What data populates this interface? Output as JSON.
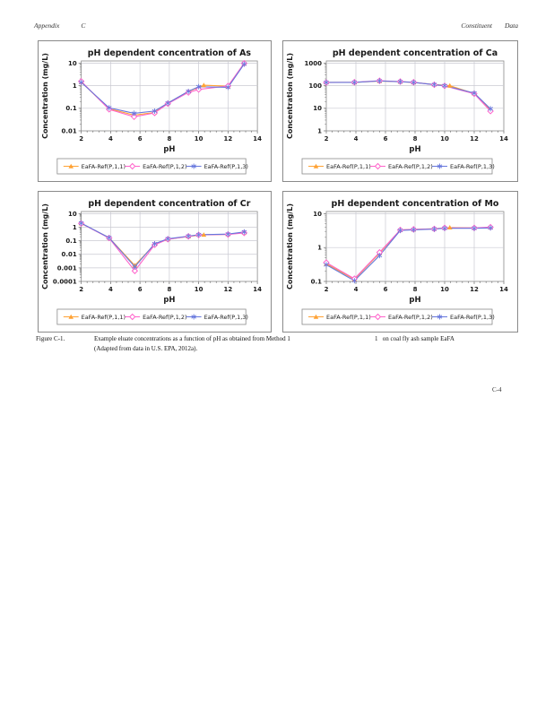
{
  "header": {
    "left": [
      "Appendix",
      "C"
    ],
    "right": [
      "Constituent",
      "Data"
    ]
  },
  "caption": {
    "label": "Figure C-1.",
    "main": "Example eluate concentrations as a function of pH as obtained from Method 1",
    "right_fragment": "1   on coal fly ash sample EaFA",
    "line2": "(Adapted from data in U.S. EPA, 2012a)."
  },
  "page_number": "C-4",
  "colors": {
    "series1": "#FFA234",
    "series2": "#FF63CB",
    "series3": "#6677DD",
    "grid": "#CACAD2",
    "axis": "#6e6e6e",
    "box_border": "#8a8a8a",
    "text": "#1a1a1a"
  },
  "legend_labels": [
    "EaFA-Ref(P,1,1)",
    "EaFA-Ref(P,1,2)",
    "EaFA-Ref(P,1,3)"
  ],
  "chart_data": [
    {
      "id": "as",
      "type": "line",
      "title": "pH dependent concentration of As",
      "xlabel": "pH",
      "ylabel": "Concentration (mg/L)",
      "x_ticks": [
        2,
        4,
        6,
        8,
        10,
        12,
        14
      ],
      "xlim": [
        2,
        14
      ],
      "y_scale": "log",
      "ylim": [
        0.01,
        10
      ],
      "y_tick_labels": [
        "0.01",
        "0.1",
        "1",
        "10"
      ],
      "grid": true,
      "legend_position": "bottom",
      "series": [
        {
          "name": "EaFA-Ref(P,1,1)",
          "marker": "triangle",
          "color_key": "series1",
          "x": [
            2,
            3.9,
            5.6,
            7,
            7.9,
            9.3,
            10.35,
            12,
            13.1
          ],
          "y": [
            1.45,
            0.095,
            0.05,
            0.065,
            0.17,
            0.55,
            1.05,
            0.95,
            9.5
          ]
        },
        {
          "name": "EaFA-Ref(P,1,2)",
          "marker": "diamond",
          "color_key": "series2",
          "x": [
            2,
            3.9,
            5.6,
            7,
            7.9,
            9.3,
            10,
            12,
            13.1
          ],
          "y": [
            1.55,
            0.09,
            0.042,
            0.062,
            0.16,
            0.5,
            0.68,
            0.97,
            9.8
          ]
        },
        {
          "name": "EaFA-Ref(P,1,3)",
          "marker": "star",
          "color_key": "series3",
          "x": [
            2,
            3.9,
            5.6,
            7,
            7.9,
            9.3,
            10,
            12,
            13.1
          ],
          "y": [
            1.4,
            0.105,
            0.06,
            0.075,
            0.17,
            0.56,
            0.9,
            0.85,
            9.0
          ]
        }
      ]
    },
    {
      "id": "ca",
      "type": "line",
      "title": "pH dependent concentration of Ca",
      "xlabel": "pH",
      "ylabel": "Concentration (mg/L)",
      "x_ticks": [
        2,
        4,
        6,
        8,
        10,
        12,
        14
      ],
      "xlim": [
        2,
        14
      ],
      "y_scale": "log",
      "ylim": [
        1,
        1000
      ],
      "y_tick_labels": [
        "1",
        "10",
        "100",
        "1000"
      ],
      "grid": true,
      "legend_position": "bottom",
      "series": [
        {
          "name": "EaFA-Ref(P,1,1)",
          "marker": "triangle",
          "color_key": "series1",
          "x": [
            2,
            3.9,
            5.6,
            7,
            7.9,
            9.3,
            10.35,
            12,
            13.1
          ],
          "y": [
            140,
            140,
            160,
            150,
            140,
            113,
            100,
            45,
            8.5
          ]
        },
        {
          "name": "EaFA-Ref(P,1,2)",
          "marker": "diamond",
          "color_key": "series2",
          "x": [
            2,
            3.9,
            5.6,
            7,
            7.9,
            9.3,
            10,
            12,
            13.1
          ],
          "y": [
            138,
            142,
            165,
            152,
            142,
            110,
            98,
            44,
            7.5
          ]
        },
        {
          "name": "EaFA-Ref(P,1,3)",
          "marker": "star",
          "color_key": "series3",
          "x": [
            2,
            3.9,
            5.6,
            7,
            7.9,
            9.3,
            10,
            12,
            13.1
          ],
          "y": [
            140,
            140,
            162,
            150,
            140,
            112,
            100,
            47,
            9.5
          ]
        }
      ]
    },
    {
      "id": "cr",
      "type": "line",
      "title": "pH dependent concentration of Cr",
      "xlabel": "pH",
      "ylabel": "Concentration (mg/L)",
      "x_ticks": [
        2,
        4,
        6,
        8,
        10,
        12,
        14
      ],
      "xlim": [
        2,
        14
      ],
      "y_scale": "log",
      "ylim": [
        0.0001,
        10
      ],
      "y_tick_labels": [
        "0.0001",
        "0.001",
        "0.01",
        "0.1",
        "1",
        "10"
      ],
      "grid": true,
      "legend_position": "bottom",
      "series": [
        {
          "name": "EaFA-Ref(P,1,1)",
          "marker": "triangle",
          "color_key": "series1",
          "x": [
            2,
            3.9,
            5.65,
            7,
            7.9,
            9.3,
            10.35,
            12,
            13.1
          ],
          "y": [
            1.9,
            0.17,
            0.0015,
            0.055,
            0.13,
            0.21,
            0.28,
            0.3,
            0.4
          ]
        },
        {
          "name": "EaFA-Ref(P,1,2)",
          "marker": "diamond",
          "color_key": "series2",
          "x": [
            2,
            3.9,
            5.65,
            7,
            7.9,
            9.3,
            10,
            12,
            13.1
          ],
          "y": [
            1.9,
            0.16,
            0.0006,
            0.05,
            0.13,
            0.21,
            0.27,
            0.29,
            0.38
          ]
        },
        {
          "name": "EaFA-Ref(P,1,3)",
          "marker": "star",
          "color_key": "series3",
          "x": [
            2,
            3.9,
            5.65,
            7,
            7.9,
            9.3,
            10,
            12,
            13.1
          ],
          "y": [
            2.0,
            0.17,
            0.0012,
            0.06,
            0.14,
            0.22,
            0.28,
            0.31,
            0.45
          ]
        }
      ]
    },
    {
      "id": "mo",
      "type": "line",
      "title": "pH dependent concentration of Mo",
      "xlabel": "pH",
      "ylabel": "Concentration (mg/L)",
      "x_ticks": [
        2,
        4,
        6,
        8,
        10,
        12,
        14
      ],
      "xlim": [
        2,
        14
      ],
      "y_scale": "log",
      "ylim": [
        0.1,
        10
      ],
      "y_tick_labels": [
        "0.1",
        "1",
        "10"
      ],
      "grid": true,
      "legend_position": "bottom",
      "series": [
        {
          "name": "EaFA-Ref(P,1,1)",
          "marker": "triangle",
          "color_key": "series1",
          "x": [
            2,
            3.9,
            5.6,
            7,
            7.9,
            9.3,
            10.35,
            12,
            13.1
          ],
          "y": [
            0.33,
            0.115,
            0.68,
            3.3,
            3.4,
            3.6,
            3.9,
            3.8,
            3.9
          ]
        },
        {
          "name": "EaFA-Ref(P,1,2)",
          "marker": "diamond",
          "color_key": "series2",
          "x": [
            2,
            3.9,
            5.6,
            7,
            7.9,
            9.3,
            10,
            12,
            13.1
          ],
          "y": [
            0.36,
            0.12,
            0.72,
            3.3,
            3.45,
            3.55,
            3.8,
            3.8,
            4.0
          ]
        },
        {
          "name": "EaFA-Ref(P,1,3)",
          "marker": "star",
          "color_key": "series3",
          "x": [
            2,
            3.9,
            5.6,
            7,
            7.9,
            9.3,
            10,
            12,
            13.1
          ],
          "y": [
            0.31,
            0.105,
            0.58,
            3.2,
            3.35,
            3.5,
            3.7,
            3.7,
            3.8
          ]
        }
      ]
    }
  ]
}
